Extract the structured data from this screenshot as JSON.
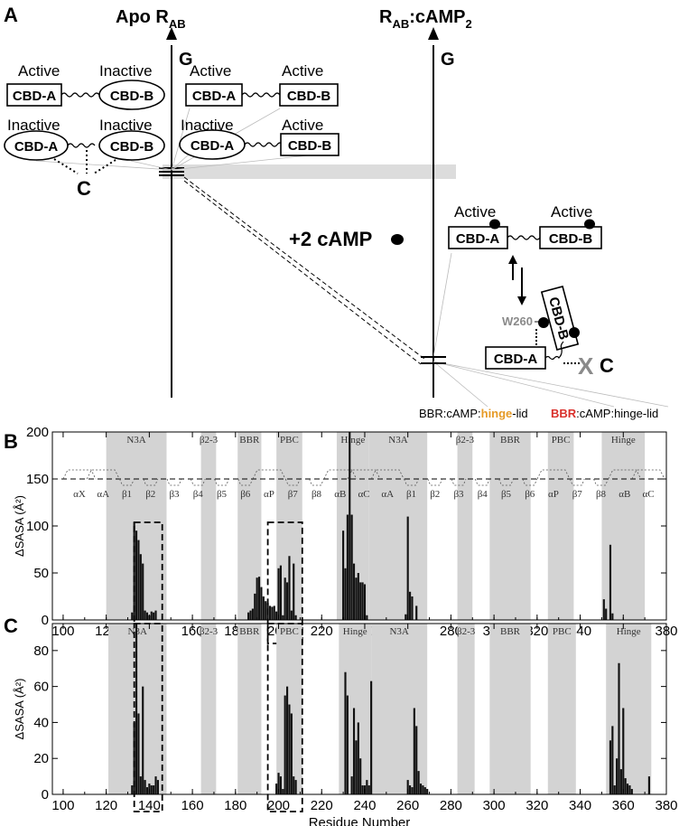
{
  "panel_a": {
    "label": "A",
    "left_title_main": "Apo R",
    "left_title_sub": "AB",
    "right_title_main": "R",
    "right_title_sub": "AB",
    "right_title_rest": ":cAMP",
    "right_title_sub2": "2",
    "axis_label": "G",
    "state_labels": {
      "active": "Active",
      "inactive": "Inactive"
    },
    "domains": {
      "a": "CBD-A",
      "b": "CBD-B"
    },
    "c_label": "C",
    "camp_label": "+2 cAMP",
    "w260_label": "W260",
    "x_mark": "X",
    "caption_left": {
      "pre": "BBR:cAMP:",
      "hl": "hinge",
      "post": "-lid",
      "hl_color": "#e69a26"
    },
    "caption_right": {
      "hl": "BBR",
      "post": ":cAMP:hinge-lid",
      "hl_color": "#d9302b"
    }
  },
  "panel_b_label": "B",
  "panel_c_label": "C",
  "chart_data": [
    {
      "type": "bar",
      "panel": "B",
      "ylabel": "ΔSASA (Å²)",
      "xlim": [
        95,
        380
      ],
      "ylim": [
        0,
        200
      ],
      "xticks": [
        100,
        120,
        140,
        160,
        180,
        200,
        220,
        240,
        260,
        280,
        300,
        320,
        340,
        360,
        380
      ],
      "yticks": [
        0,
        50,
        100,
        150,
        200
      ],
      "threshold_line": 150,
      "regions": [
        {
          "label": "N3A",
          "start": 120,
          "end": 148
        },
        {
          "label": "β2-3",
          "start": 164,
          "end": 171
        },
        {
          "label": "BBR",
          "start": 181,
          "end": 192
        },
        {
          "label": "PBC",
          "start": 199,
          "end": 211
        },
        {
          "label": "Hinge",
          "start": 227,
          "end": 242
        },
        {
          "label": "N3A",
          "start": 242,
          "end": 269
        },
        {
          "label": "β2-3",
          "start": 283,
          "end": 290
        },
        {
          "label": "BBR",
          "start": 298,
          "end": 317
        },
        {
          "label": "PBC",
          "start": 325,
          "end": 337
        },
        {
          "label": "Hinge",
          "start": 350,
          "end": 370
        }
      ],
      "secondary_structure": [
        "αX",
        "αA",
        "β1",
        "β2",
        "β3",
        "β4",
        "β5",
        "β6",
        "αP",
        "β7",
        "β8",
        "αB",
        "αC",
        "αA",
        "β1",
        "β2",
        "β3",
        "β4",
        "β5",
        "β6",
        "αP",
        "β7",
        "β8",
        "αB",
        "αC"
      ],
      "highlight_boxes": [
        [
          133,
          146
        ],
        [
          195,
          211
        ]
      ],
      "x": [
        132,
        133,
        134,
        135,
        136,
        137,
        138,
        139,
        140,
        141,
        142,
        143,
        186,
        187,
        188,
        189,
        190,
        191,
        192,
        193,
        194,
        195,
        196,
        197,
        198,
        199,
        200,
        201,
        202,
        203,
        204,
        205,
        206,
        207,
        208,
        230,
        231,
        232,
        233,
        234,
        235,
        236,
        237,
        238,
        239,
        240,
        241,
        259,
        260,
        261,
        262,
        264,
        351,
        352,
        354,
        355
      ],
      "values": [
        8,
        104,
        95,
        85,
        70,
        60,
        10,
        8,
        5,
        9,
        8,
        10,
        8,
        10,
        12,
        28,
        45,
        46,
        35,
        25,
        20,
        18,
        15,
        14,
        15,
        9,
        55,
        58,
        5,
        45,
        40,
        68,
        10,
        60,
        5,
        95,
        55,
        112,
        200,
        112,
        60,
        45,
        50,
        40,
        40,
        38,
        5,
        6,
        110,
        30,
        25,
        15,
        22,
        12,
        80,
        7
      ]
    },
    {
      "type": "bar",
      "panel": "C",
      "ylabel": "ΔSASA (Å²)",
      "xlabel": "Residue Number",
      "xlim": [
        95,
        380
      ],
      "ylim": [
        0,
        95
      ],
      "xticks": [
        100,
        120,
        140,
        160,
        180,
        200,
        220,
        240,
        260,
        280,
        300,
        320,
        340,
        360,
        380
      ],
      "yticks": [
        0,
        20,
        40,
        60,
        80
      ],
      "regions": [
        {
          "label": "N3A",
          "start": 121,
          "end": 148
        },
        {
          "label": "β2-3",
          "start": 164,
          "end": 171
        },
        {
          "label": "BBR",
          "start": 181,
          "end": 192
        },
        {
          "label": "PBC",
          "start": 199,
          "end": 211
        },
        {
          "label": "Hinge",
          "start": 228,
          "end": 243
        },
        {
          "label": "N3A",
          "start": 243,
          "end": 269
        },
        {
          "label": "β2-3",
          "start": 283,
          "end": 291
        },
        {
          "label": "BBR",
          "start": 298,
          "end": 317
        },
        {
          "label": "PBC",
          "start": 325,
          "end": 338
        },
        {
          "label": "Hinge",
          "start": 352,
          "end": 373
        }
      ],
      "highlight_boxes": [
        [
          133,
          146
        ],
        [
          195,
          211
        ]
      ],
      "x": [
        132,
        133,
        134,
        135,
        136,
        137,
        138,
        139,
        140,
        141,
        142,
        143,
        144,
        199,
        200,
        201,
        202,
        203,
        204,
        205,
        206,
        207,
        208,
        231,
        232,
        234,
        235,
        236,
        237,
        238,
        239,
        240,
        241,
        242,
        243,
        260,
        261,
        262,
        263,
        264,
        265,
        266,
        267,
        268,
        269,
        354,
        355,
        356,
        357,
        358,
        359,
        360,
        361,
        362,
        363,
        364,
        372
      ],
      "values": [
        5,
        40,
        95,
        45,
        10,
        60,
        8,
        4,
        6,
        5,
        5,
        10,
        8,
        6,
        12,
        10,
        3,
        55,
        60,
        50,
        45,
        10,
        8,
        68,
        55,
        10,
        48,
        30,
        40,
        20,
        5,
        5,
        8,
        5,
        63,
        8,
        5,
        4,
        48,
        38,
        13,
        6,
        5,
        4,
        3,
        30,
        38,
        5,
        20,
        73,
        14,
        48,
        9,
        6,
        5,
        3,
        10
      ]
    }
  ]
}
